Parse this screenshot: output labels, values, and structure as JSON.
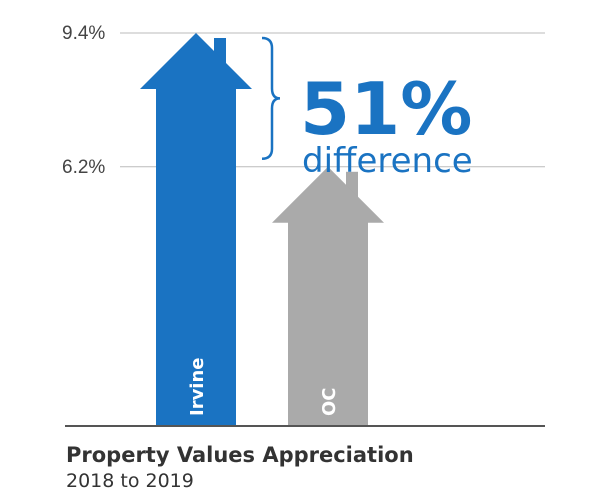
{
  "chart_data": {
    "type": "bar",
    "title": "Property Values Appreciation",
    "subtitle": "2018 to 2019",
    "categories": [
      "Irvine",
      "OC"
    ],
    "values": [
      9.4,
      6.2
    ],
    "ytick_labels": [
      "9.4%",
      "6.2%"
    ],
    "ytick_values": [
      9.4,
      6.2
    ],
    "ylim": [
      0,
      9.4
    ],
    "annotation": {
      "value": "51%",
      "text": "difference"
    },
    "grid": true,
    "colors": {
      "Irvine": "#1a73c2",
      "OC": "#aaaaaa",
      "accent": "#1a73c2",
      "axis": "#555555",
      "grid": "#bbbbbb"
    }
  }
}
